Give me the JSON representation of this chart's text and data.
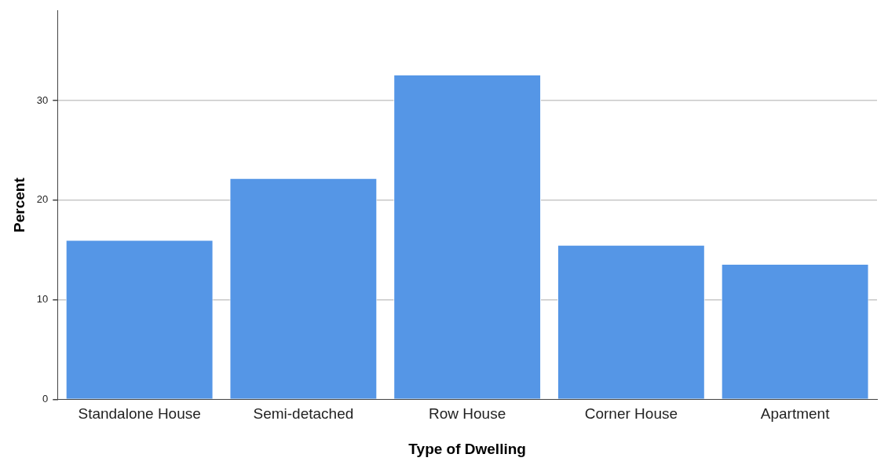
{
  "chart_data": {
    "type": "bar",
    "xlabel": "Type of Dwelling",
    "ylabel": "Percent",
    "categories": [
      "Standalone House",
      "Semi-detached",
      "Row House",
      "Corner House",
      "Apartment"
    ],
    "values": [
      16.0,
      22.2,
      32.6,
      15.5,
      13.6
    ],
    "color": "#5596e6",
    "ylim": [
      0,
      39
    ],
    "yticks": [
      0,
      10,
      20,
      30
    ],
    "grid": "y",
    "legend": false
  }
}
